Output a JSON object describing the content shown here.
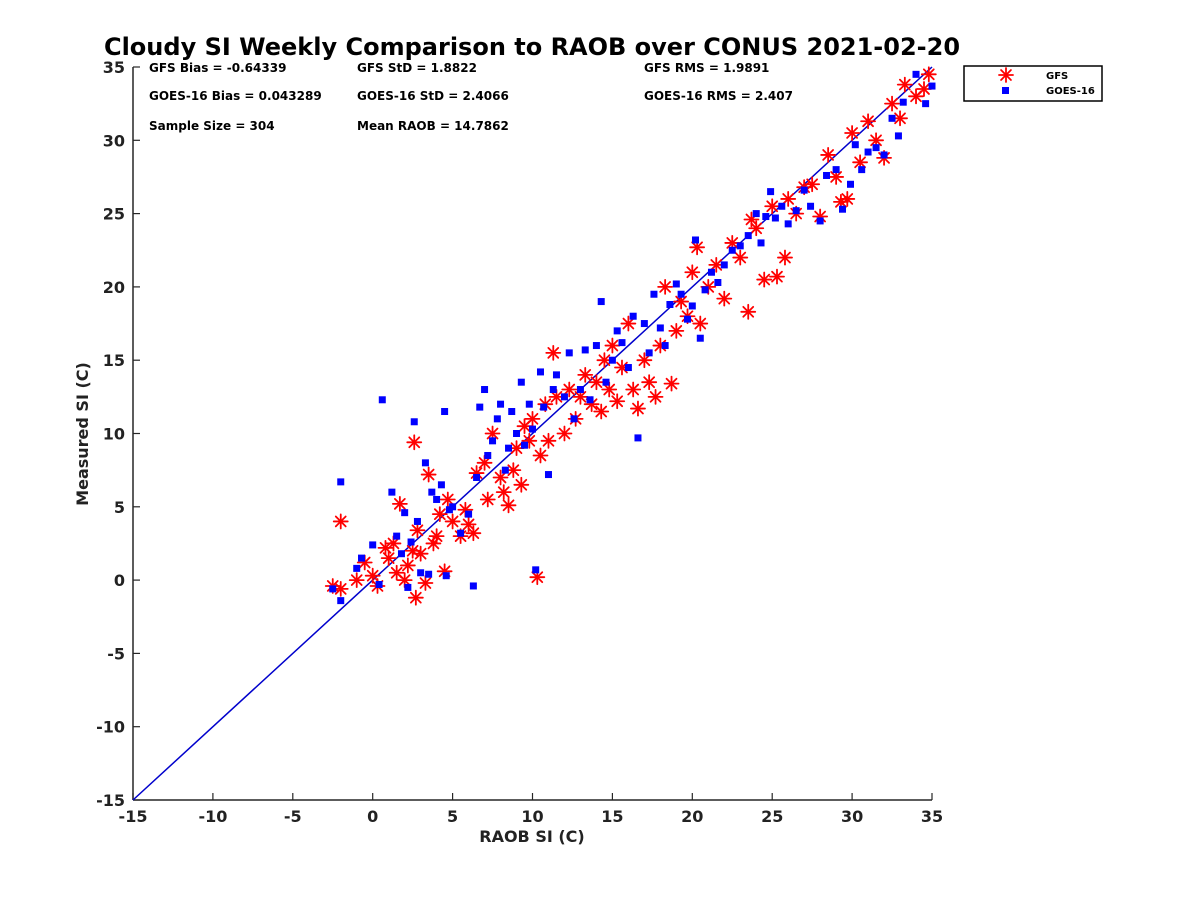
{
  "colors": {
    "gfs": "#ff0000",
    "goes": "#0000ff",
    "identity_line": "#0000cc",
    "axis": "#262626"
  },
  "chart_data": {
    "type": "scatter",
    "title": "Cloudy SI Weekly Comparison to RAOB over CONUS 2021-02-20",
    "xlabel": "RAOB SI (C)",
    "ylabel": "Measured SI (C)",
    "xlim": [
      -15,
      35
    ],
    "ylim": [
      -15,
      35
    ],
    "xticks": [
      -15,
      -10,
      -5,
      0,
      5,
      10,
      15,
      20,
      25,
      30,
      35
    ],
    "yticks": [
      -15,
      -10,
      -5,
      0,
      5,
      10,
      15,
      20,
      25,
      30,
      35
    ],
    "grid": false,
    "legend_position": "outside top-right",
    "reference_line": {
      "from": [
        -15,
        -15
      ],
      "to": [
        35,
        35
      ]
    },
    "stats": {
      "gfs_bias": "GFS Bias = -0.64339",
      "gfs_std": "GFS StD = 1.8822",
      "gfs_rms": "GFS RMS = 1.9891",
      "goes_bias": "GOES-16 Bias = 0.043289",
      "goes_std": "GOES-16 StD = 2.4066",
      "goes_rms": "GOES-16 RMS = 2.407",
      "sample_size": "Sample Size = 304",
      "mean_raob": "Mean RAOB = 14.7862"
    },
    "series": [
      {
        "name": "GFS",
        "marker": "asterisk",
        "points": [
          [
            -2.5,
            -0.4
          ],
          [
            -2,
            -0.6
          ],
          [
            -2,
            4
          ],
          [
            -1,
            0
          ],
          [
            -0.5,
            1.2
          ],
          [
            0,
            0.3
          ],
          [
            0.3,
            -0.4
          ],
          [
            0.8,
            2.2
          ],
          [
            1,
            1.5
          ],
          [
            1.3,
            2.5
          ],
          [
            1.5,
            0.5
          ],
          [
            1.7,
            5.2
          ],
          [
            2,
            0
          ],
          [
            2.2,
            1
          ],
          [
            2.5,
            2
          ],
          [
            2.6,
            9.4
          ],
          [
            2.7,
            -1.2
          ],
          [
            2.8,
            3.4
          ],
          [
            3,
            1.8
          ],
          [
            3.3,
            -0.2
          ],
          [
            3.5,
            7.2
          ],
          [
            3.8,
            2.5
          ],
          [
            4,
            3
          ],
          [
            4.2,
            4.5
          ],
          [
            4.5,
            0.6
          ],
          [
            4.7,
            5.5
          ],
          [
            5,
            4
          ],
          [
            5.5,
            3
          ],
          [
            5.8,
            4.8
          ],
          [
            6,
            3.8
          ],
          [
            6.3,
            3.2
          ],
          [
            6.5,
            7.3
          ],
          [
            7,
            8
          ],
          [
            7.2,
            5.5
          ],
          [
            7.5,
            10
          ],
          [
            8,
            7
          ],
          [
            8.2,
            6
          ],
          [
            8.5,
            5.1
          ],
          [
            8.8,
            7.5
          ],
          [
            9,
            9
          ],
          [
            9.3,
            6.5
          ],
          [
            9.5,
            10.5
          ],
          [
            9.8,
            9.5
          ],
          [
            10,
            11
          ],
          [
            10.3,
            0.2
          ],
          [
            10.5,
            8.5
          ],
          [
            10.8,
            12
          ],
          [
            11,
            9.5
          ],
          [
            11.3,
            15.5
          ],
          [
            11.5,
            12.5
          ],
          [
            12,
            10
          ],
          [
            12.3,
            13
          ],
          [
            12.7,
            11
          ],
          [
            13,
            12.5
          ],
          [
            13.3,
            14
          ],
          [
            13.7,
            12
          ],
          [
            14,
            13.5
          ],
          [
            14.3,
            11.5
          ],
          [
            14.5,
            15
          ],
          [
            14.8,
            13
          ],
          [
            15,
            16
          ],
          [
            15.3,
            12.2
          ],
          [
            15.6,
            14.5
          ],
          [
            16,
            17.5
          ],
          [
            16.3,
            13
          ],
          [
            16.6,
            11.7
          ],
          [
            17,
            15
          ],
          [
            17.3,
            13.5
          ],
          [
            17.7,
            12.5
          ],
          [
            18,
            16
          ],
          [
            18.3,
            20
          ],
          [
            18.7,
            13.4
          ],
          [
            19,
            17
          ],
          [
            19.3,
            19
          ],
          [
            19.7,
            18
          ],
          [
            20,
            21
          ],
          [
            20.3,
            22.7
          ],
          [
            20.5,
            17.5
          ],
          [
            21,
            20
          ],
          [
            21.5,
            21.5
          ],
          [
            22,
            19.2
          ],
          [
            22.5,
            23
          ],
          [
            23,
            22
          ],
          [
            23.5,
            18.3
          ],
          [
            23.7,
            24.6
          ],
          [
            24,
            24
          ],
          [
            24.5,
            20.5
          ],
          [
            25,
            25.5
          ],
          [
            25.3,
            20.7
          ],
          [
            25.8,
            22
          ],
          [
            26,
            26
          ],
          [
            26.5,
            25
          ],
          [
            27,
            26.8
          ],
          [
            27.5,
            27
          ],
          [
            28,
            24.8
          ],
          [
            28.5,
            29
          ],
          [
            29,
            27.5
          ],
          [
            29.3,
            25.8
          ],
          [
            29.7,
            26
          ],
          [
            30,
            30.5
          ],
          [
            30.5,
            28.5
          ],
          [
            31,
            31.3
          ],
          [
            31.5,
            30
          ],
          [
            32,
            28.8
          ],
          [
            32.5,
            32.5
          ],
          [
            33,
            31.5
          ],
          [
            33.3,
            33.8
          ],
          [
            34,
            33
          ],
          [
            34.5,
            33.5
          ],
          [
            34.8,
            34.5
          ]
        ]
      },
      {
        "name": "GOES-16",
        "marker": "square",
        "points": [
          [
            -2.5,
            -0.6
          ],
          [
            -2,
            -1.4
          ],
          [
            -2,
            6.7
          ],
          [
            -1,
            0.8
          ],
          [
            -0.7,
            1.5
          ],
          [
            0,
            2.4
          ],
          [
            0.4,
            -0.3
          ],
          [
            0.6,
            12.3
          ],
          [
            1.2,
            6
          ],
          [
            1.5,
            3
          ],
          [
            1.8,
            1.8
          ],
          [
            2,
            4.6
          ],
          [
            2.2,
            -0.5
          ],
          [
            2.4,
            2.6
          ],
          [
            2.6,
            10.8
          ],
          [
            2.8,
            4
          ],
          [
            3,
            0.5
          ],
          [
            3.3,
            8
          ],
          [
            3.5,
            0.4
          ],
          [
            3.7,
            6
          ],
          [
            4,
            5.5
          ],
          [
            4.3,
            6.5
          ],
          [
            4.5,
            11.5
          ],
          [
            4.6,
            0.3
          ],
          [
            4.8,
            4.8
          ],
          [
            5,
            5
          ],
          [
            5.5,
            3.2
          ],
          [
            6,
            4.5
          ],
          [
            6.3,
            -0.4
          ],
          [
            6.5,
            7
          ],
          [
            6.7,
            11.8
          ],
          [
            7,
            13
          ],
          [
            7.2,
            8.5
          ],
          [
            7.5,
            9.5
          ],
          [
            7.8,
            11
          ],
          [
            8,
            12
          ],
          [
            8.3,
            7.5
          ],
          [
            8.5,
            9
          ],
          [
            8.7,
            11.5
          ],
          [
            9,
            10
          ],
          [
            9.3,
            13.5
          ],
          [
            9.5,
            9.2
          ],
          [
            9.8,
            12
          ],
          [
            10,
            10.3
          ],
          [
            10.2,
            0.7
          ],
          [
            10.5,
            14.2
          ],
          [
            10.7,
            11.8
          ],
          [
            11,
            7.2
          ],
          [
            11.3,
            13
          ],
          [
            11.5,
            14
          ],
          [
            12,
            12.5
          ],
          [
            12.3,
            15.5
          ],
          [
            12.6,
            11
          ],
          [
            13,
            13
          ],
          [
            13.3,
            15.7
          ],
          [
            13.6,
            12.3
          ],
          [
            14,
            16
          ],
          [
            14.3,
            19
          ],
          [
            14.6,
            13.5
          ],
          [
            15,
            15
          ],
          [
            15.3,
            17
          ],
          [
            15.6,
            16.2
          ],
          [
            16,
            14.5
          ],
          [
            16.3,
            18
          ],
          [
            16.6,
            9.7
          ],
          [
            17,
            17.5
          ],
          [
            17.3,
            15.5
          ],
          [
            17.6,
            19.5
          ],
          [
            18,
            17.2
          ],
          [
            18.3,
            16
          ],
          [
            18.6,
            18.8
          ],
          [
            19,
            20.2
          ],
          [
            19.3,
            19.5
          ],
          [
            19.7,
            17.8
          ],
          [
            20,
            18.7
          ],
          [
            20.2,
            23.2
          ],
          [
            20.5,
            16.5
          ],
          [
            20.8,
            19.8
          ],
          [
            21.2,
            21
          ],
          [
            21.6,
            20.3
          ],
          [
            22,
            21.5
          ],
          [
            22.5,
            22.5
          ],
          [
            23,
            22.8
          ],
          [
            23.5,
            23.5
          ],
          [
            24,
            25
          ],
          [
            24.3,
            23
          ],
          [
            24.6,
            24.8
          ],
          [
            24.9,
            26.5
          ],
          [
            25.2,
            24.7
          ],
          [
            25.6,
            25.5
          ],
          [
            26,
            24.3
          ],
          [
            26.5,
            25.2
          ],
          [
            27,
            26.6
          ],
          [
            27.4,
            25.5
          ],
          [
            28,
            24.5
          ],
          [
            28.4,
            27.6
          ],
          [
            29,
            28
          ],
          [
            29.4,
            25.3
          ],
          [
            29.9,
            27
          ],
          [
            30.2,
            29.7
          ],
          [
            30.6,
            28
          ],
          [
            31,
            29.2
          ],
          [
            31.5,
            29.5
          ],
          [
            32,
            29
          ],
          [
            32.5,
            31.5
          ],
          [
            32.9,
            30.3
          ],
          [
            33.2,
            32.6
          ],
          [
            34,
            34.5
          ],
          [
            34.6,
            32.5
          ],
          [
            35,
            33.7
          ]
        ]
      }
    ]
  }
}
